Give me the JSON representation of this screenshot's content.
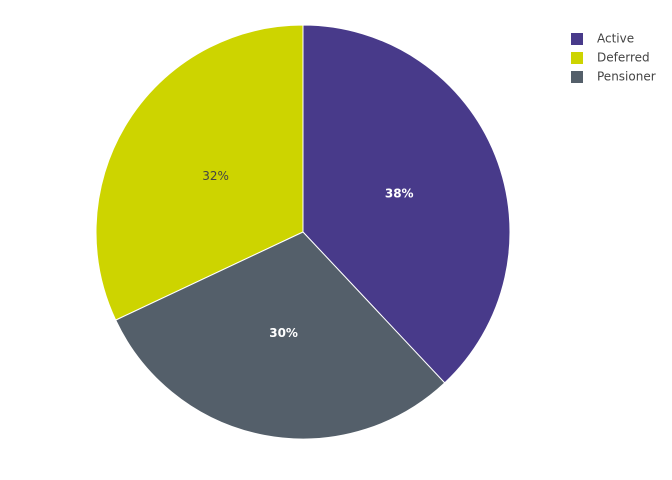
{
  "chart_data": {
    "type": "pie",
    "categories": [
      "Active",
      "Deferred",
      "Pensioner"
    ],
    "values": [
      38,
      32,
      30
    ],
    "value_labels": [
      "38%",
      "32%",
      "30%"
    ],
    "colors": [
      "#483a8a",
      "#cdd400",
      "#545f6a"
    ],
    "label_colors": [
      "#ffffff",
      "#444444",
      "#ffffff"
    ],
    "legend": "top-right"
  }
}
